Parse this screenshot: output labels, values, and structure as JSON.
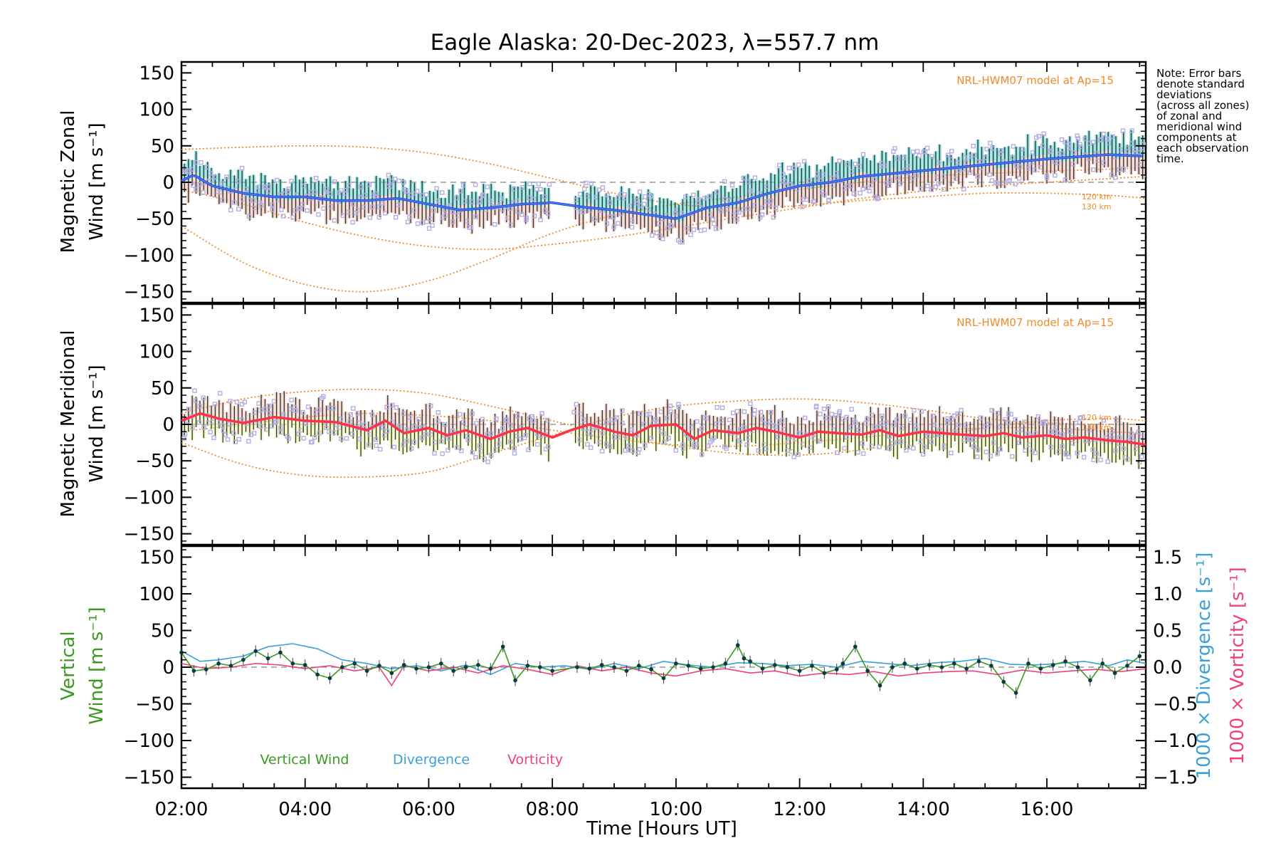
{
  "colors": {
    "zonal_line": "#2547e8",
    "zonal_light": "#4f94e8",
    "meridional_line": "#ff3048",
    "model": "#f08a28",
    "scatter": "#b4aee0",
    "errorbar_fill_pink": "#f8b8b0",
    "errorbar_fill_yellow": "#f3ee9e",
    "errorbar_cyan": "#3fc6c6",
    "vertical": "#3a9a20",
    "divergence": "#3aa0d8",
    "vorticity": "#f0407c",
    "vertical_points": "#0a3a44"
  },
  "chart_data": [
    {
      "id": "zonal",
      "type": "line",
      "title": "Eagle Alaska: 20-Dec-2023, λ=557.7 nm",
      "ylabel_line1": "Magnetic Zonal",
      "ylabel_line2": "Wind [m s⁻¹]",
      "ylim": [
        -165,
        165
      ],
      "yticks": [
        -150,
        -100,
        -50,
        0,
        50,
        100,
        150
      ],
      "xlim": [
        2.0,
        17.6
      ],
      "model_label": "NRL-HWM07 model at Ap=15",
      "km_labels": [
        "120 km",
        "130 km"
      ],
      "series": [
        {
          "name": "Zonal wind",
          "x": [
            2.0,
            2.2,
            2.5,
            3.0,
            3.5,
            4.0,
            4.5,
            5.0,
            5.5,
            6.0,
            6.5,
            7.0,
            7.5,
            8.0,
            8.5,
            9.0,
            9.5,
            10.0,
            10.5,
            11.0,
            11.5,
            12.0,
            12.5,
            13.0,
            13.5,
            14.0,
            14.5,
            15.0,
            15.5,
            16.0,
            16.5,
            17.0,
            17.5
          ],
          "values": [
            2,
            10,
            -5,
            -15,
            -20,
            -20,
            -25,
            -25,
            -22,
            -30,
            -38,
            -35,
            -30,
            -28,
            -34,
            -38,
            -44,
            -50,
            -35,
            -28,
            -15,
            -5,
            0,
            8,
            12,
            16,
            20,
            24,
            28,
            32,
            35,
            38,
            36
          ]
        }
      ],
      "model_curves": [
        {
          "name": "model_a",
          "x": [
            2.0,
            3.0,
            4.0,
            5.0,
            6.0,
            7.0,
            8.0,
            9.0,
            10.0,
            11.0,
            12.0,
            13.0,
            14.0,
            15.0,
            16.0,
            17.0,
            17.6
          ],
          "values": [
            -10,
            -30,
            -55,
            -75,
            -88,
            -92,
            -85,
            -75,
            -62,
            -48,
            -35,
            -22,
            -12,
            -5,
            0,
            5,
            8
          ]
        },
        {
          "name": "model_b",
          "x": [
            2.0,
            3.0,
            4.0,
            5.0,
            6.0,
            7.0,
            8.0,
            9.0,
            10.0,
            11.0,
            12.0,
            13.0,
            14.0,
            15.0,
            16.0,
            17.0,
            17.6
          ],
          "values": [
            -60,
            -110,
            -140,
            -150,
            -135,
            -105,
            -70,
            -45,
            -30,
            -20,
            -10,
            0,
            8,
            12,
            15,
            18,
            20
          ]
        },
        {
          "name": "model_c",
          "x": [
            2.0,
            3.0,
            4.0,
            5.0,
            6.0,
            7.0,
            8.0,
            9.0,
            10.0,
            11.0,
            12.0,
            13.0,
            14.0,
            15.0,
            16.0,
            17.0,
            17.6
          ],
          "values": [
            45,
            48,
            50,
            48,
            40,
            25,
            5,
            -15,
            -30,
            -35,
            -32,
            -25,
            -20,
            -15,
            -15,
            -18,
            -22
          ]
        }
      ]
    },
    {
      "id": "meridional",
      "type": "line",
      "ylabel_line1": "Magnetic Meridional",
      "ylabel_line2": "Wind [m s⁻¹]",
      "ylim": [
        -165,
        165
      ],
      "yticks": [
        -150,
        -100,
        -50,
        0,
        50,
        100,
        150
      ],
      "xlim": [
        2.0,
        17.6
      ],
      "model_label": "NRL-HWM07 model at Ap=15",
      "km_labels": [
        "120 km",
        "130 km"
      ],
      "series": [
        {
          "name": "Meridional wind",
          "x": [
            2.0,
            2.3,
            2.6,
            3.0,
            3.5,
            4.0,
            4.5,
            5.0,
            5.3,
            5.6,
            6.0,
            6.3,
            6.6,
            7.0,
            7.3,
            7.6,
            8.0,
            8.3,
            8.6,
            9.0,
            9.3,
            9.6,
            10.0,
            10.3,
            10.6,
            11.0,
            11.3,
            11.6,
            12.0,
            12.3,
            12.6,
            13.0,
            13.3,
            13.6,
            14.0,
            14.3,
            14.6,
            15.0,
            15.3,
            15.6,
            16.0,
            16.3,
            16.6,
            17.0,
            17.3,
            17.6
          ],
          "values": [
            5,
            15,
            8,
            2,
            10,
            5,
            3,
            -8,
            5,
            -12,
            -5,
            -15,
            -8,
            -20,
            -10,
            -5,
            -18,
            -8,
            0,
            -10,
            -15,
            -2,
            0,
            -20,
            -8,
            -12,
            -5,
            -10,
            -18,
            -10,
            -12,
            -14,
            -8,
            -16,
            -10,
            -12,
            -14,
            -16,
            -12,
            -18,
            -15,
            -20,
            -18,
            -22,
            -24,
            -28
          ]
        }
      ],
      "model_curves": [
        {
          "name": "model_a",
          "x": [
            2.0,
            3.0,
            4.0,
            5.0,
            6.0,
            7.0,
            8.0,
            9.0,
            10.0,
            11.0,
            12.0,
            13.0,
            14.0,
            15.0,
            16.0,
            17.0,
            17.6
          ],
          "values": [
            15,
            35,
            45,
            48,
            42,
            25,
            5,
            -15,
            -30,
            -40,
            -42,
            -35,
            -20,
            -5,
            5,
            8,
            5
          ]
        },
        {
          "name": "model_b",
          "x": [
            2.0,
            3.0,
            4.0,
            5.0,
            6.0,
            7.0,
            8.0,
            9.0,
            10.0,
            11.0,
            12.0,
            13.0,
            14.0,
            15.0,
            16.0,
            17.0,
            17.6
          ],
          "values": [
            -25,
            -55,
            -70,
            -72,
            -65,
            -40,
            -15,
            10,
            25,
            32,
            35,
            30,
            20,
            8,
            2,
            0,
            0
          ]
        },
        {
          "name": "model_c",
          "x": [
            2.0,
            3.0,
            4.0,
            5.0,
            6.0,
            7.0,
            8.0,
            9.0,
            10.0,
            11.0,
            12.0,
            13.0,
            14.0,
            15.0,
            16.0,
            17.0,
            17.6
          ],
          "values": [
            -10,
            0,
            10,
            15,
            12,
            5,
            -8,
            -20,
            -28,
            -30,
            -25,
            -18,
            -10,
            -5,
            -5,
            -10,
            -12
          ]
        }
      ]
    },
    {
      "id": "vertical",
      "type": "line",
      "ylabel_line1": "Vertical",
      "ylabel_line2": "Wind [m s⁻¹]",
      "ylim": [
        -165,
        165
      ],
      "yticks": [
        -150,
        -100,
        -50,
        0,
        50,
        100,
        150
      ],
      "xlim": [
        2.0,
        17.6
      ],
      "xlabel": "Time [Hours UT]",
      "xticks": [
        2,
        4,
        6,
        8,
        10,
        12,
        14,
        16
      ],
      "xtick_labels": [
        "02:00",
        "04:00",
        "06:00",
        "08:00",
        "10:00",
        "12:00",
        "14:00",
        "16:00"
      ],
      "y2label_divergence": "1000 × Divergence [s⁻¹]",
      "y2label_vorticity": "1000 × Vorticity [s⁻¹]",
      "y2lim": [
        -1.65,
        1.65
      ],
      "y2ticks": [
        -1.5,
        -1.0,
        -0.5,
        0.0,
        0.5,
        1.0,
        1.5
      ],
      "y2tick_labels": [
        "−1.5",
        "−1.0",
        "−0.5",
        "0.0",
        "0.5",
        "1.0",
        "1.5"
      ],
      "legend": [
        "Vertical Wind",
        "Divergence",
        "Vorticity"
      ],
      "series": [
        {
          "name": "Vertical Wind",
          "x": [
            2.0,
            2.2,
            2.4,
            2.6,
            2.8,
            3.0,
            3.2,
            3.4,
            3.6,
            3.8,
            4.0,
            4.2,
            4.4,
            4.6,
            4.8,
            5.0,
            5.2,
            5.4,
            5.6,
            5.8,
            6.0,
            6.2,
            6.4,
            6.6,
            6.8,
            7.0,
            7.2,
            7.4,
            7.6,
            7.8,
            8.0,
            8.4,
            8.6,
            8.8,
            9.0,
            9.2,
            9.4,
            9.6,
            9.8,
            10.0,
            10.2,
            10.4,
            10.6,
            10.8,
            11.0,
            11.1,
            11.2,
            11.4,
            11.6,
            11.8,
            12.0,
            12.2,
            12.4,
            12.6,
            12.7,
            12.9,
            13.1,
            13.3,
            13.5,
            13.7,
            13.9,
            14.1,
            14.3,
            14.5,
            14.7,
            14.9,
            15.1,
            15.3,
            15.5,
            15.7,
            15.9,
            16.1,
            16.3,
            16.5,
            16.7,
            16.9,
            17.1,
            17.3,
            17.5
          ],
          "values": [
            20,
            -5,
            -3,
            5,
            2,
            10,
            22,
            12,
            20,
            5,
            3,
            -10,
            -15,
            0,
            5,
            -5,
            2,
            -8,
            3,
            -2,
            0,
            5,
            -5,
            0,
            3,
            -2,
            28,
            -18,
            2,
            0,
            -5,
            0,
            -2,
            3,
            0,
            -5,
            2,
            -3,
            -15,
            5,
            2,
            -2,
            0,
            5,
            30,
            12,
            8,
            -2,
            3,
            0,
            -5,
            2,
            -8,
            -3,
            5,
            28,
            -5,
            -25,
            0,
            5,
            -2,
            3,
            0,
            5,
            -2,
            8,
            2,
            -20,
            -35,
            5,
            -2,
            3,
            8,
            0,
            -18,
            5,
            -8,
            2,
            15
          ]
        },
        {
          "name": "Divergence",
          "axis": "y2",
          "x": [
            2.0,
            2.3,
            2.6,
            3.0,
            3.4,
            3.8,
            4.2,
            4.6,
            5.0,
            5.4,
            5.8,
            6.2,
            6.6,
            7.0,
            7.4,
            7.8,
            8.2,
            8.6,
            9.0,
            9.4,
            9.8,
            10.2,
            10.6,
            11.0,
            11.4,
            11.8,
            12.2,
            12.6,
            13.0,
            13.4,
            13.8,
            14.2,
            14.6,
            15.0,
            15.4,
            15.8,
            16.2,
            16.6,
            17.0,
            17.3,
            17.6
          ],
          "values": [
            0.22,
            0.08,
            0.1,
            0.15,
            0.28,
            0.32,
            0.25,
            0.1,
            0.05,
            -0.02,
            0.02,
            -0.05,
            0.03,
            -0.1,
            0.05,
            0.0,
            0.02,
            -0.03,
            0.05,
            -0.02,
            0.08,
            0.03,
            0.0,
            0.06,
            0.05,
            0.02,
            0.04,
            0.0,
            0.08,
            0.05,
            0.02,
            0.06,
            0.08,
            0.12,
            0.04,
            0.03,
            0.05,
            0.08,
            0.02,
            0.1,
            0.05
          ]
        },
        {
          "name": "Vorticity",
          "axis": "y2",
          "x": [
            2.0,
            2.4,
            2.8,
            3.2,
            3.6,
            4.0,
            4.4,
            4.8,
            5.2,
            5.4,
            5.6,
            6.0,
            6.4,
            6.8,
            7.2,
            7.6,
            8.0,
            8.4,
            8.8,
            9.2,
            9.6,
            10.0,
            10.4,
            10.8,
            11.2,
            11.6,
            12.0,
            12.4,
            12.8,
            13.2,
            13.6,
            14.0,
            14.4,
            14.8,
            15.2,
            15.6,
            16.0,
            16.4,
            16.8,
            17.2,
            17.6
          ],
          "values": [
            0.05,
            -0.02,
            0.0,
            0.05,
            0.03,
            -0.02,
            0.02,
            -0.05,
            0.0,
            -0.25,
            0.02,
            -0.05,
            0.0,
            -0.08,
            0.02,
            -0.03,
            -0.1,
            0.02,
            -0.05,
            0.0,
            -0.08,
            -0.12,
            -0.05,
            -0.02,
            -0.08,
            -0.05,
            -0.12,
            -0.08,
            -0.1,
            -0.06,
            -0.12,
            -0.08,
            -0.06,
            -0.05,
            -0.1,
            -0.04,
            -0.08,
            -0.05,
            -0.03,
            -0.06,
            -0.02
          ]
        }
      ]
    }
  ],
  "note": {
    "lines": [
      "Note: Error bars",
      "denote standard",
      "deviations",
      "(across all zones)",
      "of zonal and",
      "meridional wind",
      "components at",
      "each observation",
      "time."
    ]
  }
}
